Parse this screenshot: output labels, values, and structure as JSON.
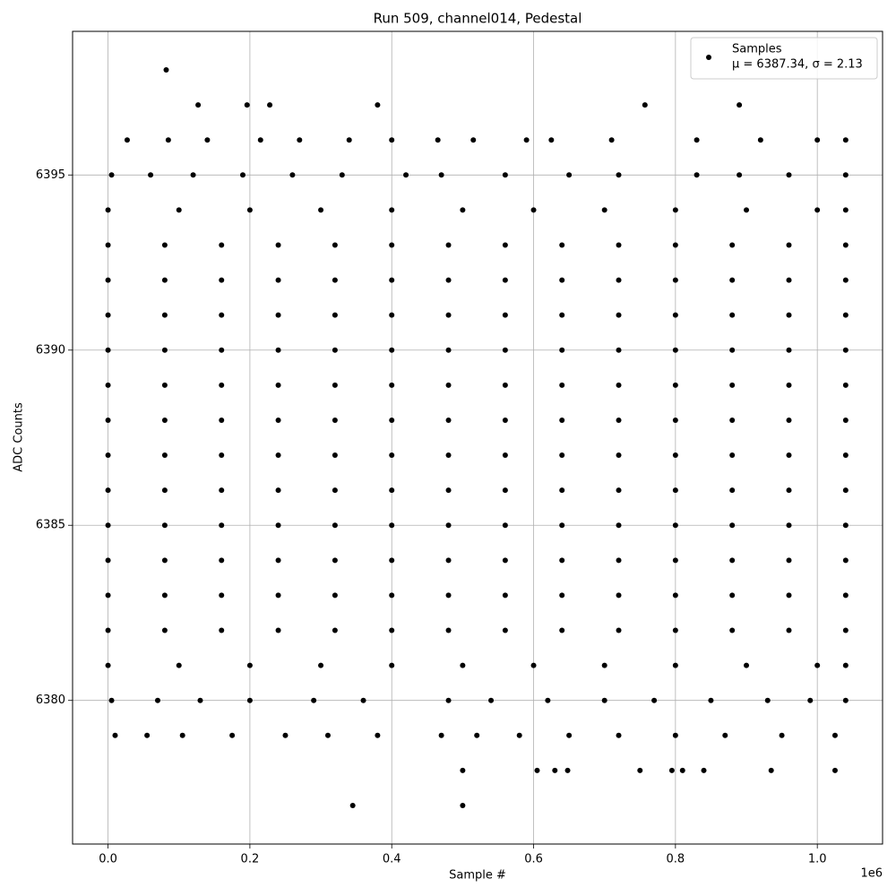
{
  "chart_data": {
    "type": "scatter",
    "title": "Run 509, channel014, Pedestal",
    "x_label": "Sample #",
    "y_label": "ADC Counts",
    "x_offset_label": "1e6",
    "xlim": [
      -50000,
      1092000
    ],
    "ylim": [
      6375.9,
      6399.1
    ],
    "xticks": [
      {
        "value": 0,
        "label": "0.0"
      },
      {
        "value": 200000,
        "label": "0.2"
      },
      {
        "value": 400000,
        "label": "0.4"
      },
      {
        "value": 600000,
        "label": "0.6"
      },
      {
        "value": 800000,
        "label": "0.8"
      },
      {
        "value": 1000000,
        "label": "1.0"
      }
    ],
    "yticks": [
      6380,
      6385,
      6390,
      6395
    ],
    "grid": true,
    "legend": "upper right",
    "series": [
      {
        "name": "Samples",
        "label": "μ = 6387.34, σ = 2.13",
        "color": "#000000",
        "x": [
          0,
          80000,
          160000,
          240000,
          320000,
          400000,
          480000,
          560000,
          640000,
          720000,
          800000,
          880000,
          960000,
          1040000,
          0,
          80000,
          160000,
          240000,
          320000,
          400000,
          480000,
          560000,
          640000,
          720000,
          800000,
          880000,
          960000,
          1040000,
          0,
          80000,
          160000,
          240000,
          320000,
          400000,
          480000,
          560000,
          640000,
          720000,
          800000,
          880000,
          960000,
          1040000,
          0,
          80000,
          160000,
          240000,
          320000,
          400000,
          480000,
          560000,
          640000,
          720000,
          800000,
          880000,
          960000,
          1040000,
          0,
          80000,
          160000,
          240000,
          320000,
          400000,
          480000,
          560000,
          640000,
          720000,
          800000,
          880000,
          960000,
          1040000,
          0,
          80000,
          160000,
          240000,
          320000,
          400000,
          480000,
          560000,
          640000,
          720000,
          800000,
          880000,
          960000,
          1040000,
          0,
          80000,
          160000,
          240000,
          320000,
          400000,
          480000,
          560000,
          640000,
          720000,
          800000,
          880000,
          960000,
          1040000,
          0,
          80000,
          160000,
          240000,
          320000,
          400000,
          480000,
          560000,
          640000,
          720000,
          800000,
          880000,
          960000,
          1040000,
          0,
          80000,
          160000,
          240000,
          320000,
          400000,
          480000,
          560000,
          640000,
          720000,
          800000,
          880000,
          960000,
          1040000,
          0,
          80000,
          160000,
          240000,
          320000,
          400000,
          480000,
          560000,
          640000,
          720000,
          800000,
          880000,
          960000,
          1040000,
          0,
          80000,
          160000,
          240000,
          320000,
          400000,
          480000,
          560000,
          640000,
          720000,
          800000,
          880000,
          960000,
          1040000,
          0,
          80000,
          160000,
          240000,
          320000,
          400000,
          480000,
          560000,
          640000,
          720000,
          800000,
          880000,
          960000,
          1040000,
          0,
          100000,
          200000,
          300000,
          400000,
          500000,
          600000,
          700000,
          800000,
          900000,
          1000000,
          1040000,
          0,
          100000,
          200000,
          300000,
          400000,
          500000,
          600000,
          700000,
          800000,
          900000,
          1000000,
          1040000,
          5000,
          60000,
          120000,
          190000,
          260000,
          330000,
          420000,
          470000,
          560000,
          650000,
          720000,
          830000,
          890000,
          960000,
          1040000,
          5000,
          70000,
          130000,
          200000,
          290000,
          360000,
          480000,
          540000,
          620000,
          700000,
          770000,
          850000,
          930000,
          990000,
          1040000,
          27000,
          85000,
          140000,
          215000,
          270000,
          340000,
          400000,
          465000,
          515000,
          590000,
          625000,
          710000,
          830000,
          920000,
          1000000,
          1040000,
          10000,
          55000,
          105000,
          175000,
          250000,
          310000,
          380000,
          470000,
          520000,
          580000,
          650000,
          720000,
          800000,
          870000,
          950000,
          1025000,
          127000,
          196000,
          228000,
          380000,
          757000,
          890000,
          82000,
          500000,
          605000,
          630000,
          648000,
          750000,
          795000,
          810000,
          840000,
          935000,
          1025000,
          345000,
          500000
        ],
        "y": [
          6382,
          6382,
          6382,
          6382,
          6382,
          6382,
          6382,
          6382,
          6382,
          6382,
          6382,
          6382,
          6382,
          6382,
          6383,
          6383,
          6383,
          6383,
          6383,
          6383,
          6383,
          6383,
          6383,
          6383,
          6383,
          6383,
          6383,
          6383,
          6384,
          6384,
          6384,
          6384,
          6384,
          6384,
          6384,
          6384,
          6384,
          6384,
          6384,
          6384,
          6384,
          6384,
          6385,
          6385,
          6385,
          6385,
          6385,
          6385,
          6385,
          6385,
          6385,
          6385,
          6385,
          6385,
          6385,
          6385,
          6386,
          6386,
          6386,
          6386,
          6386,
          6386,
          6386,
          6386,
          6386,
          6386,
          6386,
          6386,
          6386,
          6386,
          6387,
          6387,
          6387,
          6387,
          6387,
          6387,
          6387,
          6387,
          6387,
          6387,
          6387,
          6387,
          6387,
          6387,
          6388,
          6388,
          6388,
          6388,
          6388,
          6388,
          6388,
          6388,
          6388,
          6388,
          6388,
          6388,
          6388,
          6388,
          6389,
          6389,
          6389,
          6389,
          6389,
          6389,
          6389,
          6389,
          6389,
          6389,
          6389,
          6389,
          6389,
          6389,
          6390,
          6390,
          6390,
          6390,
          6390,
          6390,
          6390,
          6390,
          6390,
          6390,
          6390,
          6390,
          6390,
          6390,
          6391,
          6391,
          6391,
          6391,
          6391,
          6391,
          6391,
          6391,
          6391,
          6391,
          6391,
          6391,
          6391,
          6391,
          6392,
          6392,
          6392,
          6392,
          6392,
          6392,
          6392,
          6392,
          6392,
          6392,
          6392,
          6392,
          6392,
          6392,
          6393,
          6393,
          6393,
          6393,
          6393,
          6393,
          6393,
          6393,
          6393,
          6393,
          6393,
          6393,
          6393,
          6393,
          6394,
          6394,
          6394,
          6394,
          6394,
          6394,
          6394,
          6394,
          6394,
          6394,
          6394,
          6394,
          6381,
          6381,
          6381,
          6381,
          6381,
          6381,
          6381,
          6381,
          6381,
          6381,
          6381,
          6381,
          6395,
          6395,
          6395,
          6395,
          6395,
          6395,
          6395,
          6395,
          6395,
          6395,
          6395,
          6395,
          6395,
          6395,
          6395,
          6380,
          6380,
          6380,
          6380,
          6380,
          6380,
          6380,
          6380,
          6380,
          6380,
          6380,
          6380,
          6380,
          6380,
          6380,
          6396,
          6396,
          6396,
          6396,
          6396,
          6396,
          6396,
          6396,
          6396,
          6396,
          6396,
          6396,
          6396,
          6396,
          6396,
          6396,
          6379,
          6379,
          6379,
          6379,
          6379,
          6379,
          6379,
          6379,
          6379,
          6379,
          6379,
          6379,
          6379,
          6379,
          6379,
          6379,
          6397,
          6397,
          6397,
          6397,
          6397,
          6397,
          6398,
          6378,
          6378,
          6378,
          6378,
          6378,
          6378,
          6378,
          6378,
          6378,
          6378,
          6377,
          6377
        ]
      }
    ]
  }
}
